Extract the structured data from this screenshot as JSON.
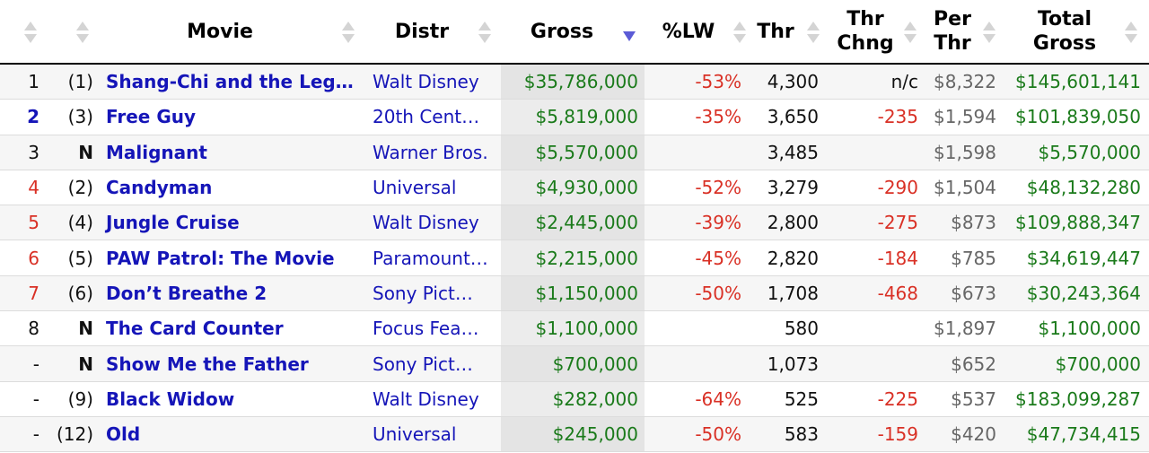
{
  "header": {
    "movie": "Movie",
    "distr": "Distr",
    "gross": "Gross",
    "lw": "%LW",
    "thr": "Thr",
    "thr_chng_1": "Thr",
    "thr_chng_2": "Chng",
    "per_thr_1": "Per",
    "per_thr_2": "Thr",
    "total_1": "Total",
    "total_2": "Gross"
  },
  "colors": {
    "link": "#1515b8",
    "positive": "#1a7a1a",
    "negative": "#d93025",
    "muted": "#666666",
    "sort_active": "#5b5bd6"
  },
  "rows": [
    {
      "rank": "1",
      "rank_color": "black",
      "last": "(1)",
      "movie": "Shang-Chi and the Leg…",
      "distr": "Walt Disney",
      "gross": "$35,786,000",
      "lw": "-53%",
      "thr": "4,300",
      "thr_chng": "n/c",
      "thr_chng_color": "black",
      "per_thr": "$8,322",
      "total": "$145,601,141"
    },
    {
      "rank": "2",
      "rank_color": "blue",
      "last": "(3)",
      "movie": "Free Guy",
      "distr": "20th Cent…",
      "gross": "$5,819,000",
      "lw": "-35%",
      "thr": "3,650",
      "thr_chng": "-235",
      "thr_chng_color": "red",
      "per_thr": "$1,594",
      "total": "$101,839,050"
    },
    {
      "rank": "3",
      "rank_color": "black",
      "last": "N",
      "movie": "Malignant",
      "distr": "Warner Bros.",
      "gross": "$5,570,000",
      "lw": "",
      "thr": "3,485",
      "thr_chng": "",
      "thr_chng_color": "black",
      "per_thr": "$1,598",
      "total": "$5,570,000"
    },
    {
      "rank": "4",
      "rank_color": "red",
      "last": "(2)",
      "movie": "Candyman",
      "distr": "Universal",
      "gross": "$4,930,000",
      "lw": "-52%",
      "thr": "3,279",
      "thr_chng": "-290",
      "thr_chng_color": "red",
      "per_thr": "$1,504",
      "total": "$48,132,280"
    },
    {
      "rank": "5",
      "rank_color": "red",
      "last": "(4)",
      "movie": "Jungle Cruise",
      "distr": "Walt Disney",
      "gross": "$2,445,000",
      "lw": "-39%",
      "thr": "2,800",
      "thr_chng": "-275",
      "thr_chng_color": "red",
      "per_thr": "$873",
      "total": "$109,888,347"
    },
    {
      "rank": "6",
      "rank_color": "red",
      "last": "(5)",
      "movie": "PAW Patrol: The Movie",
      "distr": "Paramount…",
      "gross": "$2,215,000",
      "lw": "-45%",
      "thr": "2,820",
      "thr_chng": "-184",
      "thr_chng_color": "red",
      "per_thr": "$785",
      "total": "$34,619,447"
    },
    {
      "rank": "7",
      "rank_color": "red",
      "last": "(6)",
      "movie": "Don’t Breathe 2",
      "distr": "Sony Pict…",
      "gross": "$1,150,000",
      "lw": "-50%",
      "thr": "1,708",
      "thr_chng": "-468",
      "thr_chng_color": "red",
      "per_thr": "$673",
      "total": "$30,243,364"
    },
    {
      "rank": "8",
      "rank_color": "black",
      "last": "N",
      "movie": "The Card Counter",
      "distr": "Focus Fea…",
      "gross": "$1,100,000",
      "lw": "",
      "thr": "580",
      "thr_chng": "",
      "thr_chng_color": "black",
      "per_thr": "$1,897",
      "total": "$1,100,000"
    },
    {
      "rank": "-",
      "rank_color": "black",
      "last": "N",
      "movie": "Show Me the Father",
      "distr": "Sony Pict…",
      "gross": "$700,000",
      "lw": "",
      "thr": "1,073",
      "thr_chng": "",
      "thr_chng_color": "black",
      "per_thr": "$652",
      "total": "$700,000"
    },
    {
      "rank": "-",
      "rank_color": "black",
      "last": "(9)",
      "movie": "Black Widow",
      "distr": "Walt Disney",
      "gross": "$282,000",
      "lw": "-64%",
      "thr": "525",
      "thr_chng": "-225",
      "thr_chng_color": "red",
      "per_thr": "$537",
      "total": "$183,099,287"
    },
    {
      "rank": "-",
      "rank_color": "black",
      "last": "(12)",
      "movie": "Old",
      "distr": "Universal",
      "gross": "$245,000",
      "lw": "-50%",
      "thr": "583",
      "thr_chng": "-159",
      "thr_chng_color": "red",
      "per_thr": "$420",
      "total": "$47,734,415"
    }
  ]
}
